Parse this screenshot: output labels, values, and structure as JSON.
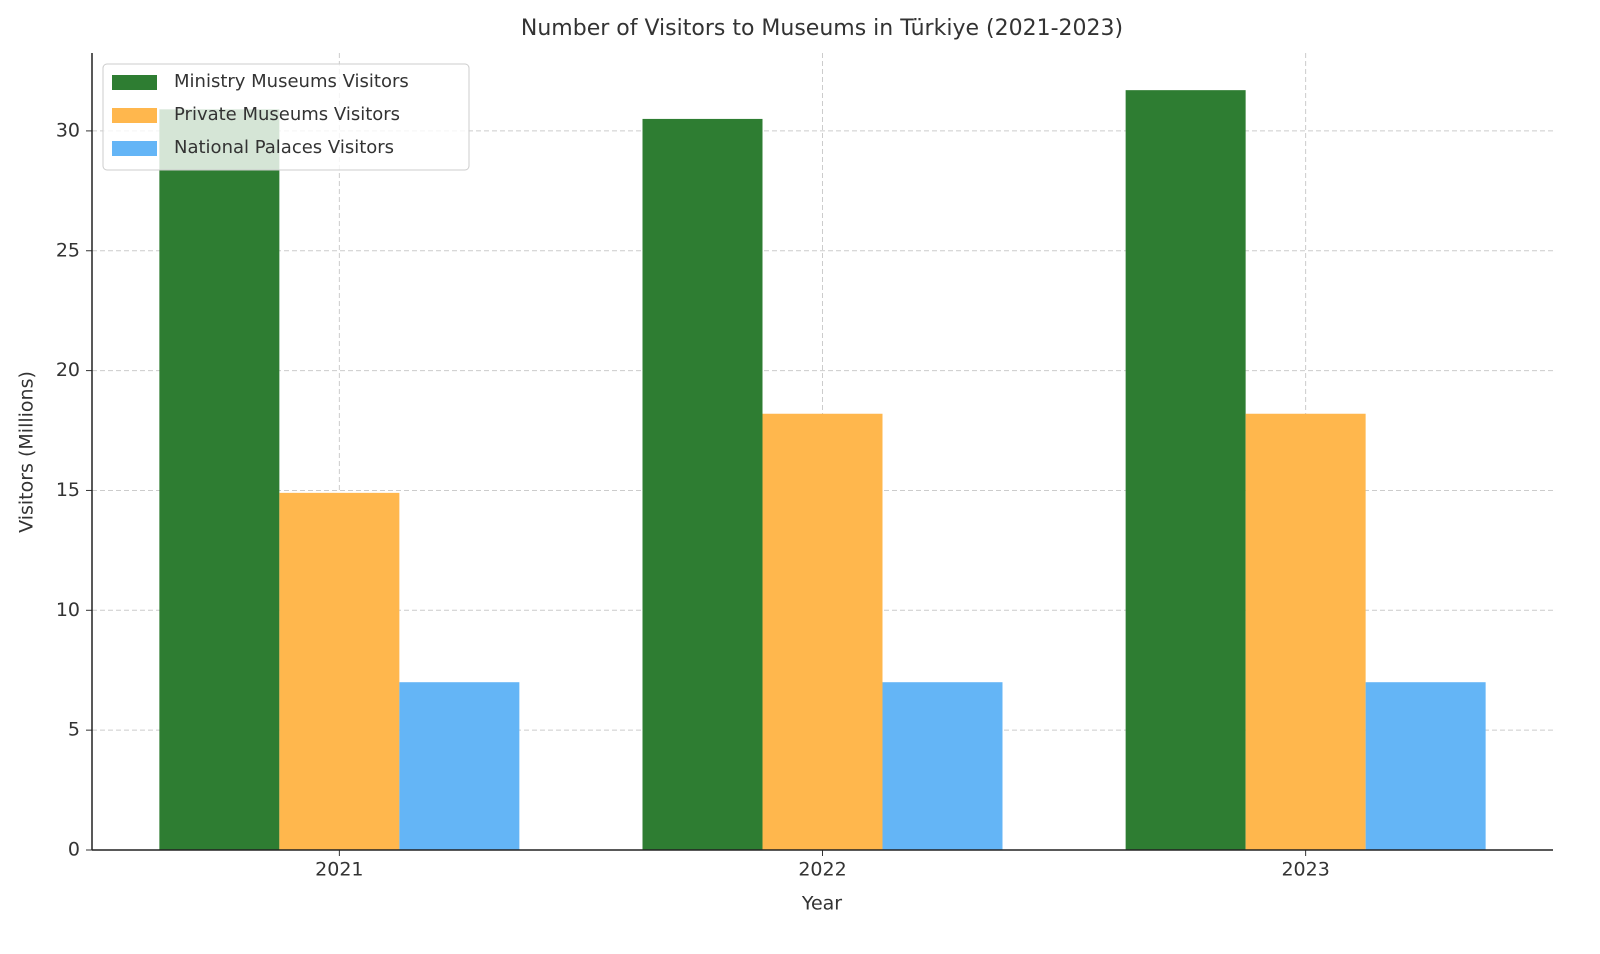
{
  "chart_data": {
    "type": "bar",
    "title": "Number of Visitors to Museums in Türkiye (2021-2023)",
    "x_label": "Year",
    "y_label": "Visitors (Millions)",
    "categories": [
      "2021",
      "2022",
      "2023"
    ],
    "series": [
      {
        "name": "Ministry Museums Visitors",
        "color": "#2e7d32",
        "values": [
          30.9,
          30.5,
          31.7
        ]
      },
      {
        "name": "Private Museums Visitors",
        "color": "#ffb74d",
        "values": [
          14.9,
          18.2,
          18.2
        ]
      },
      {
        "name": "National Palaces Visitors",
        "color": "#64b5f6",
        "values": [
          7.0,
          7.0,
          7.0
        ]
      }
    ],
    "ylim": [
      0,
      33.25
    ],
    "yticks": [
      0,
      5,
      10,
      15,
      20,
      25,
      30
    ],
    "grid": true,
    "legend": "upper left"
  }
}
